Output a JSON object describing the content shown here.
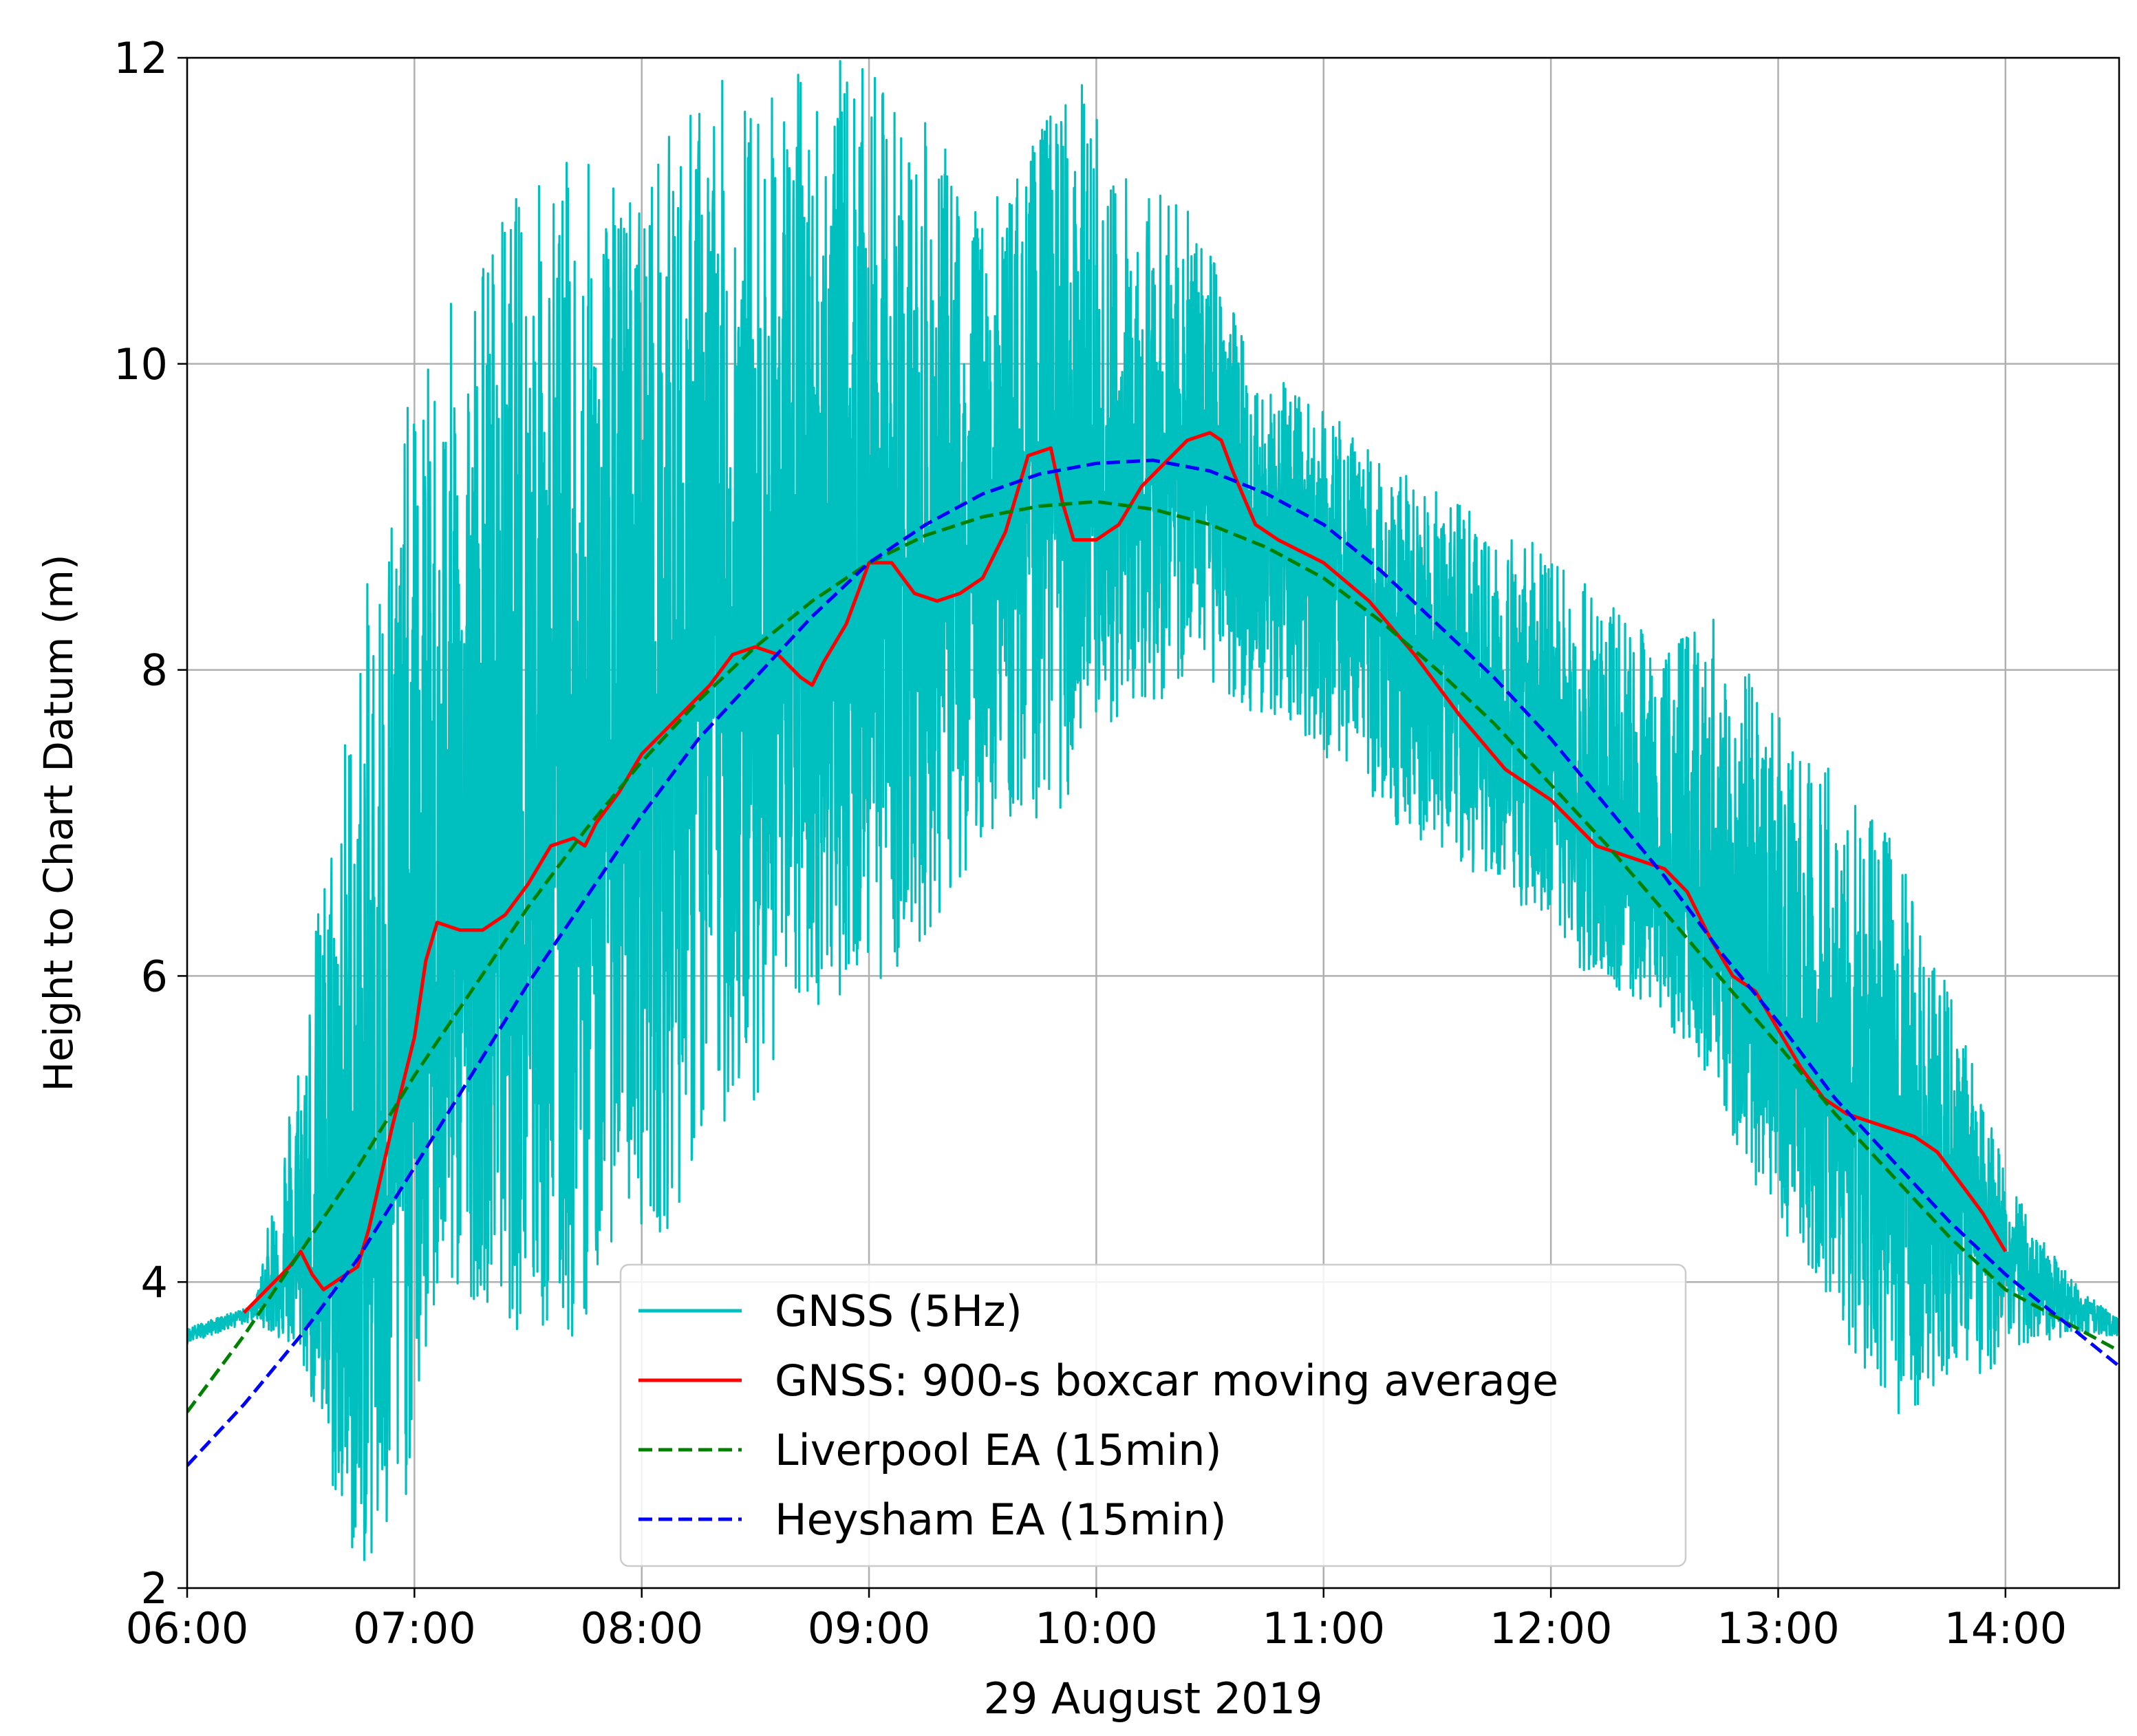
{
  "chart_data": {
    "type": "line",
    "title": "",
    "xlabel": "29 August 2019",
    "ylabel": "Height to Chart Datum (m)",
    "xlim": [
      6.0,
      14.5
    ],
    "ylim": [
      2,
      12
    ],
    "grid": true,
    "x_ticks": [
      {
        "value": 6,
        "label": "06:00"
      },
      {
        "value": 7,
        "label": "07:00"
      },
      {
        "value": 8,
        "label": "08:00"
      },
      {
        "value": 9,
        "label": "09:00"
      },
      {
        "value": 10,
        "label": "10:00"
      },
      {
        "value": 11,
        "label": "11:00"
      },
      {
        "value": 12,
        "label": "12:00"
      },
      {
        "value": 13,
        "label": "13:00"
      },
      {
        "value": 14,
        "label": "14:00"
      }
    ],
    "y_ticks": [
      {
        "value": 2,
        "label": "2"
      },
      {
        "value": 4,
        "label": "4"
      },
      {
        "value": 6,
        "label": "6"
      },
      {
        "value": 8,
        "label": "8"
      },
      {
        "value": 10,
        "label": "10"
      },
      {
        "value": 12,
        "label": "12"
      }
    ],
    "legend_position": "lower-center",
    "series": [
      {
        "name": "GNSS (5Hz)",
        "color": "#00BFBF",
        "style": "solid",
        "mean": {
          "x": [
            6.0,
            6.25,
            6.5,
            6.75,
            7.0,
            7.25,
            7.5,
            7.75,
            8.0,
            8.25,
            8.5,
            8.75,
            9.0,
            9.25,
            9.5,
            9.75,
            10.0,
            10.25,
            10.5,
            10.75,
            11.0,
            11.25,
            11.5,
            11.75,
            12.0,
            12.25,
            12.5,
            12.75,
            13.0,
            13.25,
            13.5,
            13.75,
            14.0,
            14.25,
            14.5
          ],
          "y": [
            3.65,
            3.8,
            4.1,
            4.1,
            5.6,
            6.3,
            6.7,
            6.9,
            7.4,
            7.9,
            8.1,
            8.0,
            8.7,
            8.5,
            8.6,
            9.4,
            8.9,
            9.2,
            9.5,
            8.8,
            8.6,
            8.35,
            8.05,
            7.65,
            7.25,
            6.85,
            6.6,
            6.1,
            5.7,
            5.2,
            5.0,
            4.7,
            4.2,
            3.9,
            3.7
          ]
        },
        "envelope": {
          "x": [
            6.0,
            6.3,
            6.5,
            6.7,
            6.9,
            7.1,
            7.3,
            7.5,
            7.7,
            7.9,
            8.1,
            8.3,
            8.5,
            8.7,
            8.9,
            9.1,
            9.3,
            9.5,
            9.7,
            9.9,
            10.1,
            10.3,
            10.5,
            10.7,
            10.9,
            11.1,
            11.3,
            11.5,
            11.7,
            11.9,
            12.1,
            12.3,
            12.5,
            12.7,
            12.9,
            13.1,
            13.3,
            13.5,
            13.7,
            13.9,
            14.1,
            14.3,
            14.5
          ],
          "upper": [
            3.7,
            3.85,
            5.7,
            7.8,
            9.5,
            10.2,
            10.9,
            11.3,
            11.4,
            11.2,
            11.5,
            11.9,
            11.8,
            12.0,
            12.0,
            11.8,
            11.5,
            11.0,
            11.4,
            12.0,
            11.3,
            11.2,
            10.8,
            10.0,
            9.8,
            9.6,
            9.3,
            9.2,
            9.0,
            8.9,
            8.6,
            8.5,
            8.2,
            8.4,
            8.0,
            7.6,
            7.2,
            6.9,
            6.2,
            5.2,
            4.4,
            4.0,
            3.75
          ],
          "lower": [
            3.6,
            3.75,
            3.5,
            2.2,
            2.0,
            3.8,
            3.9,
            3.6,
            3.5,
            4.4,
            4.3,
            4.9,
            5.2,
            5.7,
            5.9,
            6.0,
            6.3,
            6.9,
            7.0,
            7.1,
            7.7,
            7.8,
            7.9,
            7.7,
            7.6,
            7.3,
            7.0,
            6.8,
            6.6,
            6.3,
            6.0,
            5.9,
            5.7,
            5.3,
            4.5,
            4.2,
            3.6,
            3.1,
            3.2,
            3.4,
            3.6,
            3.65,
            3.65
          ]
        }
      },
      {
        "name": "GNSS: 900-s boxcar moving average",
        "color": "#FF0000",
        "style": "solid",
        "x": [
          6.25,
          6.35,
          6.45,
          6.5,
          6.55,
          6.6,
          6.7,
          6.75,
          6.8,
          6.9,
          7.0,
          7.05,
          7.1,
          7.2,
          7.3,
          7.4,
          7.5,
          7.6,
          7.7,
          7.75,
          7.8,
          7.9,
          8.0,
          8.1,
          8.2,
          8.3,
          8.4,
          8.5,
          8.6,
          8.7,
          8.75,
          8.8,
          8.9,
          9.0,
          9.1,
          9.2,
          9.3,
          9.4,
          9.5,
          9.6,
          9.7,
          9.8,
          9.85,
          9.9,
          10.0,
          10.1,
          10.2,
          10.3,
          10.4,
          10.5,
          10.55,
          10.6,
          10.7,
          10.8,
          11.0,
          11.2,
          11.4,
          11.6,
          11.8,
          12.0,
          12.1,
          12.2,
          12.3,
          12.4,
          12.5,
          12.6,
          12.7,
          12.8,
          12.9,
          13.0,
          13.1,
          13.2,
          13.3,
          13.4,
          13.5,
          13.6,
          13.7,
          13.8,
          13.9,
          14.0
        ],
        "y": [
          3.8,
          3.95,
          4.1,
          4.2,
          4.05,
          3.95,
          4.05,
          4.1,
          4.35,
          5.0,
          5.6,
          6.1,
          6.35,
          6.3,
          6.3,
          6.4,
          6.6,
          6.85,
          6.9,
          6.85,
          7.0,
          7.2,
          7.45,
          7.6,
          7.75,
          7.9,
          8.1,
          8.15,
          8.1,
          7.95,
          7.9,
          8.05,
          8.3,
          8.7,
          8.7,
          8.5,
          8.45,
          8.5,
          8.6,
          8.9,
          9.4,
          9.45,
          9.1,
          8.85,
          8.85,
          8.95,
          9.2,
          9.35,
          9.5,
          9.55,
          9.5,
          9.3,
          8.95,
          8.85,
          8.7,
          8.45,
          8.1,
          7.7,
          7.35,
          7.15,
          7.0,
          6.85,
          6.8,
          6.75,
          6.7,
          6.55,
          6.25,
          6.0,
          5.9,
          5.65,
          5.4,
          5.2,
          5.1,
          5.05,
          5.0,
          4.95,
          4.85,
          4.65,
          4.45,
          4.2
        ]
      },
      {
        "name": "Liverpool EA (15min)",
        "color": "#008000",
        "style": "dashed",
        "x": [
          6.0,
          6.25,
          6.5,
          6.75,
          7.0,
          7.25,
          7.5,
          7.75,
          8.0,
          8.25,
          8.5,
          8.75,
          9.0,
          9.25,
          9.5,
          9.75,
          10.0,
          10.25,
          10.5,
          10.75,
          11.0,
          11.25,
          11.5,
          11.75,
          12.0,
          12.25,
          12.5,
          12.75,
          13.0,
          13.25,
          13.5,
          13.75,
          14.0,
          14.25,
          14.5
        ],
        "y": [
          3.15,
          3.65,
          4.2,
          4.75,
          5.35,
          5.9,
          6.45,
          6.95,
          7.4,
          7.8,
          8.15,
          8.45,
          8.7,
          8.88,
          9.0,
          9.07,
          9.1,
          9.05,
          8.95,
          8.8,
          8.6,
          8.32,
          8.0,
          7.65,
          7.25,
          6.85,
          6.42,
          5.98,
          5.55,
          5.1,
          4.7,
          4.3,
          3.95,
          3.75,
          3.55
        ]
      },
      {
        "name": "Heysham EA (15min)",
        "color": "#0000FF",
        "style": "dashed",
        "x": [
          6.0,
          6.25,
          6.5,
          6.75,
          7.0,
          7.25,
          7.5,
          7.75,
          8.0,
          8.25,
          8.5,
          8.75,
          9.0,
          9.25,
          9.5,
          9.75,
          10.0,
          10.25,
          10.5,
          10.75,
          11.0,
          11.25,
          11.5,
          11.75,
          12.0,
          12.25,
          12.5,
          12.75,
          13.0,
          13.25,
          13.5,
          13.75,
          14.0,
          14.25,
          14.5
        ],
        "y": [
          2.8,
          3.2,
          3.65,
          4.15,
          4.75,
          5.35,
          5.95,
          6.5,
          7.05,
          7.55,
          7.95,
          8.35,
          8.7,
          8.95,
          9.15,
          9.28,
          9.35,
          9.37,
          9.3,
          9.15,
          8.95,
          8.65,
          8.3,
          7.95,
          7.55,
          7.1,
          6.65,
          6.15,
          5.7,
          5.2,
          4.8,
          4.4,
          4.05,
          3.75,
          3.45
        ]
      }
    ]
  }
}
